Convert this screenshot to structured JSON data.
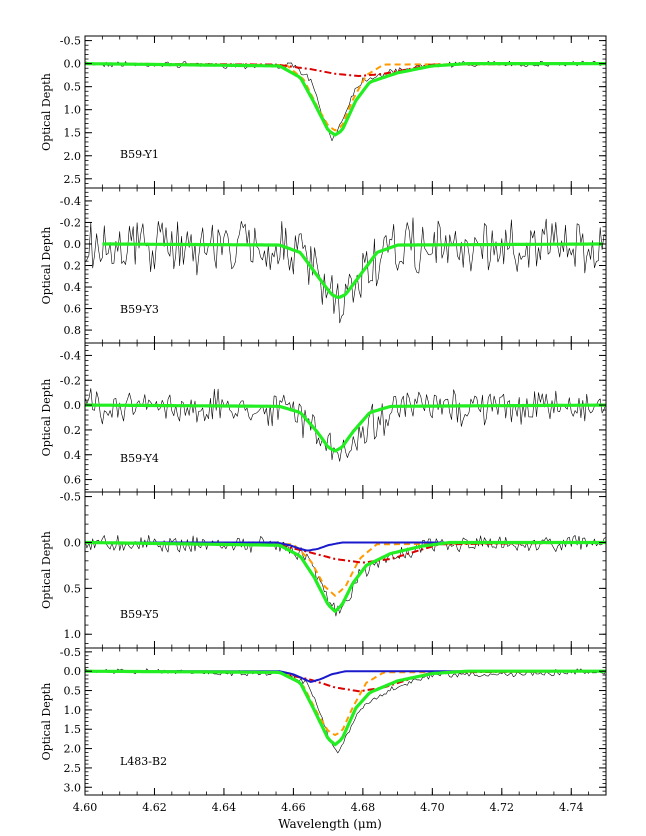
{
  "xaxis": {
    "label": "Wavelength (μm)",
    "range": [
      4.6,
      4.75
    ],
    "major_ticks": [
      4.6,
      4.62,
      4.64,
      4.66,
      4.68,
      4.7,
      4.72,
      4.74
    ],
    "tick_labels": [
      "4.60",
      "4.62",
      "4.64",
      "4.66",
      "4.68",
      "4.70",
      "4.72",
      "4.74"
    ]
  },
  "ylabel": "Optical Depth",
  "colors": {
    "observed": "#000000",
    "total_fit": "#22ee22",
    "narrow": "#ff9900",
    "broad": "#dd0000",
    "blue": "#1a1acc"
  },
  "chart_data": [
    {
      "type": "line",
      "panel_label": "B59-Y1",
      "ylim": [
        2.7,
        -0.6
      ],
      "y_ticks": [
        -0.5,
        0.0,
        0.5,
        1.0,
        1.5,
        2.0,
        2.5
      ],
      "y_tick_labels": [
        "-0.5",
        "0.0",
        "0.5",
        "1.0",
        "1.5",
        "2.0",
        "2.5"
      ],
      "series": [
        {
          "role": "observed",
          "noise": 0.05,
          "x": [
            4.6,
            4.66,
            4.665,
            4.668,
            4.671,
            4.674,
            4.677,
            4.68,
            4.69,
            4.7,
            4.75
          ],
          "y": [
            0.0,
            0.05,
            0.35,
            1.05,
            1.65,
            1.25,
            0.65,
            0.35,
            0.15,
            0.02,
            0.0
          ]
        },
        {
          "role": "total_fit",
          "x": [
            4.6,
            4.656,
            4.662,
            4.666,
            4.67,
            4.672,
            4.674,
            4.678,
            4.682,
            4.69,
            4.7,
            4.71,
            4.75
          ],
          "y": [
            0.0,
            0.05,
            0.3,
            0.85,
            1.45,
            1.55,
            1.45,
            0.8,
            0.4,
            0.2,
            0.05,
            0.0,
            0.0
          ]
        },
        {
          "role": "narrow",
          "x": [
            4.6,
            4.658,
            4.663,
            4.667,
            4.67,
            4.672,
            4.674,
            4.677,
            4.681,
            4.686,
            4.75
          ],
          "y": [
            0.0,
            0.03,
            0.35,
            0.95,
            1.35,
            1.45,
            1.35,
            0.8,
            0.25,
            0.02,
            0.0
          ]
        },
        {
          "role": "broad",
          "x": [
            4.6,
            4.655,
            4.665,
            4.672,
            4.679,
            4.686,
            4.693,
            4.7,
            4.75
          ],
          "y": [
            0.0,
            0.02,
            0.12,
            0.22,
            0.27,
            0.22,
            0.12,
            0.02,
            0.0
          ]
        }
      ]
    },
    {
      "type": "line",
      "panel_label": "B59-Y3",
      "ylim": [
        0.92,
        -0.52
      ],
      "y_ticks": [
        -0.4,
        -0.2,
        0.0,
        0.2,
        0.4,
        0.6,
        0.8
      ],
      "y_tick_labels": [
        "-0.4",
        "-0.2",
        "0.0",
        "0.2",
        "0.4",
        "0.6",
        "0.8"
      ],
      "series": [
        {
          "role": "observed",
          "noise": 0.2,
          "x": [
            4.6,
            4.66,
            4.666,
            4.67,
            4.673,
            4.676,
            4.68,
            4.69,
            4.75
          ],
          "y": [
            0.0,
            0.03,
            0.25,
            0.5,
            0.62,
            0.5,
            0.25,
            0.05,
            0.0
          ]
        },
        {
          "role": "total_fit",
          "x": [
            4.605,
            4.656,
            4.662,
            4.667,
            4.671,
            4.673,
            4.675,
            4.679,
            4.684,
            4.69,
            4.749
          ],
          "y": [
            0.0,
            0.01,
            0.08,
            0.3,
            0.47,
            0.5,
            0.47,
            0.3,
            0.08,
            0.01,
            0.0
          ]
        }
      ]
    },
    {
      "type": "line",
      "panel_label": "B59-Y4",
      "ylim": [
        0.7,
        -0.5
      ],
      "y_ticks": [
        -0.4,
        -0.2,
        0.0,
        0.2,
        0.4,
        0.6
      ],
      "y_tick_labels": [
        "-0.4",
        "-0.2",
        "0.0",
        "0.2",
        "0.4",
        "0.6"
      ],
      "series": [
        {
          "role": "observed",
          "noise": 0.11,
          "x": [
            4.6,
            4.66,
            4.666,
            4.67,
            4.673,
            4.676,
            4.68,
            4.69,
            4.75
          ],
          "y": [
            0.0,
            0.03,
            0.18,
            0.35,
            0.42,
            0.35,
            0.18,
            0.03,
            0.0
          ]
        },
        {
          "role": "total_fit",
          "x": [
            4.6,
            4.656,
            4.662,
            4.667,
            4.67,
            4.672,
            4.674,
            4.677,
            4.682,
            4.688,
            4.75
          ],
          "y": [
            0.0,
            0.01,
            0.06,
            0.22,
            0.34,
            0.37,
            0.34,
            0.22,
            0.06,
            0.01,
            0.0
          ]
        }
      ]
    },
    {
      "type": "line",
      "panel_label": "B59-Y5",
      "ylim": [
        1.15,
        -0.55
      ],
      "y_ticks": [
        -0.5,
        0.0,
        0.5,
        1.0
      ],
      "y_tick_labels": [
        "-0.5",
        "0.0",
        "0.5",
        "1.0"
      ],
      "series": [
        {
          "role": "observed",
          "noise": 0.07,
          "x": [
            4.6,
            4.658,
            4.664,
            4.668,
            4.671,
            4.673,
            4.676,
            4.68,
            4.69,
            4.7,
            4.75
          ],
          "y": [
            0.0,
            0.03,
            0.15,
            0.4,
            0.7,
            0.78,
            0.6,
            0.3,
            0.12,
            0.03,
            0.0
          ]
        },
        {
          "role": "total_fit",
          "x": [
            4.6,
            4.656,
            4.662,
            4.666,
            4.67,
            4.672,
            4.674,
            4.677,
            4.681,
            4.688,
            4.697,
            4.705,
            4.75
          ],
          "y": [
            0.0,
            0.03,
            0.15,
            0.38,
            0.68,
            0.75,
            0.68,
            0.45,
            0.25,
            0.12,
            0.04,
            0.0,
            0.0
          ]
        },
        {
          "role": "narrow",
          "x": [
            4.6,
            4.66,
            4.665,
            4.669,
            4.672,
            4.675,
            4.679,
            4.684,
            4.75
          ],
          "y": [
            0.0,
            0.02,
            0.2,
            0.48,
            0.58,
            0.48,
            0.18,
            0.02,
            0.0
          ]
        },
        {
          "role": "broad",
          "x": [
            4.6,
            4.655,
            4.664,
            4.672,
            4.68,
            4.688,
            4.695,
            4.702,
            4.75
          ],
          "y": [
            0.0,
            0.02,
            0.1,
            0.18,
            0.22,
            0.18,
            0.1,
            0.02,
            0.0
          ]
        },
        {
          "role": "blue",
          "x": [
            4.6,
            4.655,
            4.659,
            4.662,
            4.664,
            4.667,
            4.67,
            4.674,
            4.71
          ],
          "y": [
            0.0,
            0.0,
            0.03,
            0.07,
            0.09,
            0.07,
            0.03,
            0.0,
            0.0
          ]
        }
      ]
    },
    {
      "type": "line",
      "panel_label": "L483-B2",
      "ylim": [
        3.2,
        -0.6
      ],
      "y_ticks": [
        -0.5,
        0.0,
        0.5,
        1.0,
        1.5,
        2.0,
        2.5,
        3.0
      ],
      "y_tick_labels": [
        "-0.5",
        "0.0",
        "0.5",
        "1.0",
        "1.5",
        "2.0",
        "2.5",
        "3.0"
      ],
      "series": [
        {
          "role": "observed",
          "noise": 0.06,
          "x": [
            4.6,
            4.658,
            4.664,
            4.668,
            4.671,
            4.673,
            4.676,
            4.68,
            4.69,
            4.7,
            4.75
          ],
          "y": [
            0.0,
            0.05,
            0.3,
            1.1,
            1.9,
            2.1,
            1.55,
            0.9,
            0.4,
            0.12,
            0.0
          ]
        },
        {
          "role": "total_fit",
          "x": [
            4.6,
            4.656,
            4.662,
            4.666,
            4.67,
            4.672,
            4.674,
            4.678,
            4.682,
            4.69,
            4.7,
            4.71,
            4.75
          ],
          "y": [
            0.0,
            0.03,
            0.3,
            1.0,
            1.75,
            1.9,
            1.75,
            0.95,
            0.55,
            0.25,
            0.06,
            0.0,
            0.0
          ]
        },
        {
          "role": "narrow",
          "x": [
            4.6,
            4.658,
            4.663,
            4.667,
            4.67,
            4.672,
            4.674,
            4.677,
            4.681,
            4.686,
            4.75
          ],
          "y": [
            0.0,
            0.03,
            0.4,
            1.1,
            1.55,
            1.65,
            1.55,
            0.95,
            0.3,
            0.03,
            0.0
          ]
        },
        {
          "role": "broad",
          "x": [
            4.6,
            4.655,
            4.665,
            4.672,
            4.679,
            4.686,
            4.693,
            4.7,
            4.75
          ],
          "y": [
            0.0,
            0.03,
            0.22,
            0.42,
            0.52,
            0.42,
            0.22,
            0.03,
            0.0
          ]
        },
        {
          "role": "blue",
          "x": [
            4.6,
            4.656,
            4.66,
            4.663,
            4.665,
            4.668,
            4.671,
            4.675,
            4.71
          ],
          "y": [
            0.0,
            0.0,
            0.08,
            0.2,
            0.28,
            0.2,
            0.08,
            0.0,
            0.0
          ]
        }
      ]
    }
  ]
}
